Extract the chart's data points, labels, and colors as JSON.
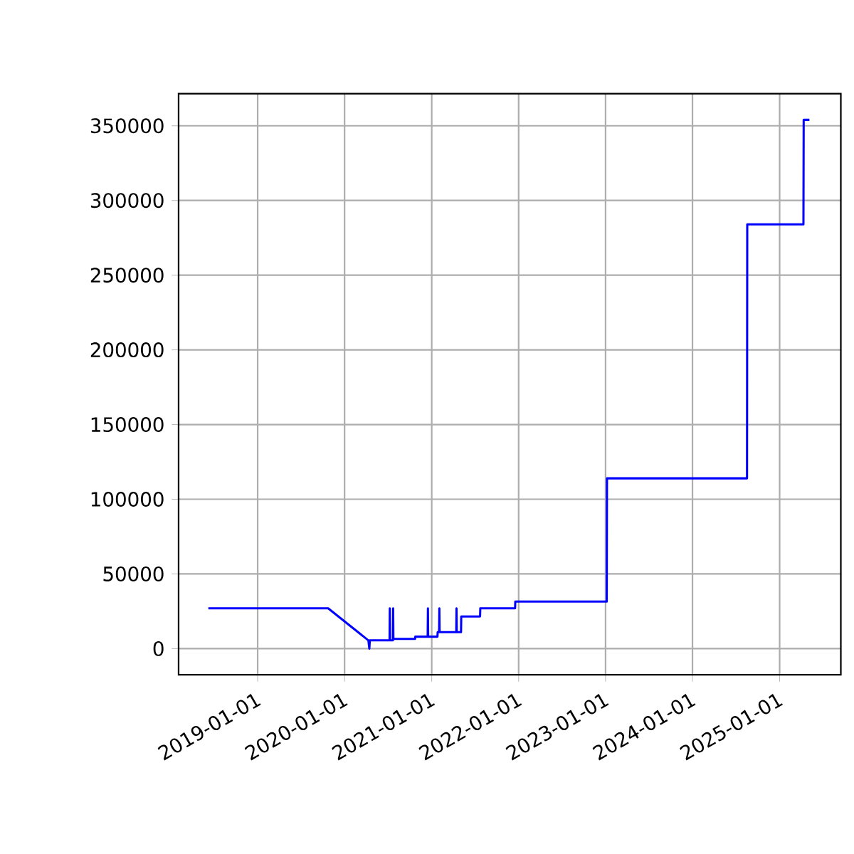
{
  "chart_data": {
    "type": "line",
    "color": "#0000ff",
    "grid": true,
    "x": [
      "2018-06-08",
      "2019-10-24",
      "2020-04-10",
      "2020-04-14",
      "2020-04-16",
      "2020-07-08",
      "2020-07-09",
      "2020-07-10",
      "2020-07-22",
      "2020-07-23",
      "2020-07-24",
      "2020-10-23",
      "2020-10-24",
      "2020-12-15",
      "2020-12-16",
      "2020-12-17",
      "2021-01-25",
      "2021-01-26",
      "2021-02-01",
      "2021-02-02",
      "2021-02-03",
      "2021-04-14",
      "2021-04-15",
      "2021-04-16",
      "2021-05-04",
      "2021-05-05",
      "2021-07-23",
      "2021-07-24",
      "2021-12-17",
      "2021-12-18",
      "2023-01-06",
      "2023-01-07",
      "2024-08-17",
      "2024-08-18",
      "2025-04-11",
      "2025-04-12",
      "2025-05-06"
    ],
    "values": [
      27000,
      27000,
      5500,
      0,
      5500,
      5500,
      27000,
      5500,
      5500,
      27000,
      6500,
      6500,
      8000,
      8000,
      27000,
      8000,
      8000,
      11000,
      11000,
      27000,
      11000,
      11000,
      27000,
      11000,
      11000,
      21500,
      21500,
      27000,
      27000,
      31500,
      31500,
      114000,
      114000,
      284000,
      284000,
      354000,
      354000
    ],
    "xlim": [
      "2018-02-03",
      "2025-09-15"
    ],
    "ylim": [
      -17500,
      371500
    ],
    "xticks": [
      "2019-01-01",
      "2020-01-01",
      "2021-01-01",
      "2022-01-01",
      "2023-01-01",
      "2024-01-01",
      "2025-01-01"
    ],
    "yticks": [
      0,
      50000,
      100000,
      150000,
      200000,
      250000,
      300000,
      350000
    ]
  }
}
